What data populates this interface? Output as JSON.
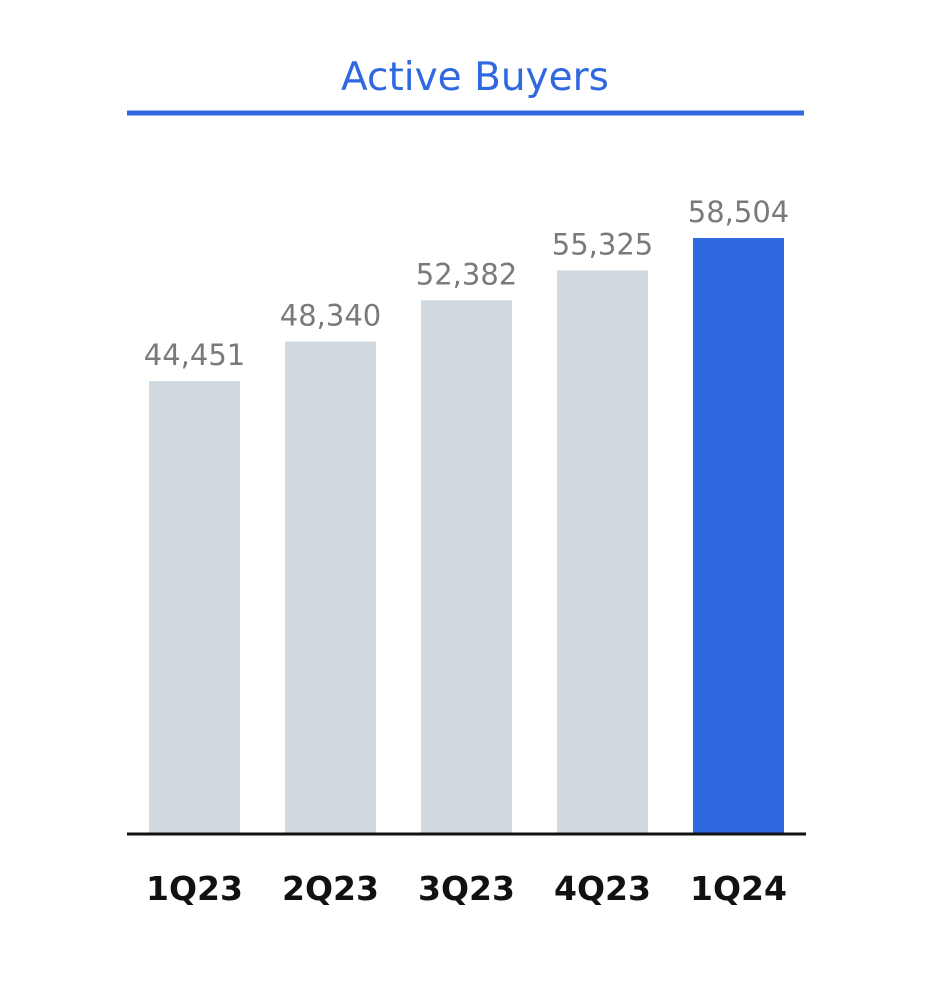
{
  "chart_data": {
    "type": "bar",
    "title": "Active Buyers",
    "categories": [
      "1Q23",
      "2Q23",
      "3Q23",
      "4Q23",
      "1Q24"
    ],
    "values": [
      44451,
      48340,
      52382,
      55325,
      58504
    ],
    "value_labels": [
      "44,451",
      "48,340",
      "52,382",
      "55,325",
      "58,504"
    ],
    "ylim": [
      0,
      58504
    ],
    "grid": false,
    "legend": "none",
    "highlight_index": 4
  },
  "colors": {
    "title": "#2f68e0",
    "title_rule": "#2f68e0",
    "bar_default": "#cfd9df",
    "bar_highlight": "#2f68e0",
    "value_label": "#7a7a7a",
    "category_label": "#111111",
    "baseline": "#111111"
  }
}
